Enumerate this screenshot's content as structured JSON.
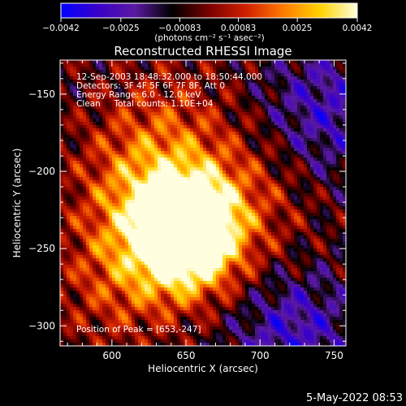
{
  "chart_data": {
    "type": "heatmap",
    "title": "Reconstructed RHESSI Image",
    "xlabel": "Heliocentric X (arcsec)",
    "ylabel": "Heliocentric Y (arcsec)",
    "xlim": [
      565,
      758
    ],
    "ylim": [
      -313,
      -128
    ],
    "xticks": [
      600,
      650,
      700,
      750
    ],
    "xtick_labels": [
      "600",
      "650",
      "700",
      "750"
    ],
    "yticks": [
      -150,
      -200,
      -250,
      -300
    ],
    "ytick_labels": [
      "−150",
      "−200",
      "−250",
      "−300"
    ],
    "colorbar": {
      "min": -0.0042,
      "max": 0.0042,
      "ticks": [
        -0.0042,
        -0.0025,
        -0.00083,
        0.00083,
        0.0025,
        0.0042
      ],
      "tick_labels": [
        "−0.0042",
        "−0.0025",
        "−0.00083",
        "0.00083",
        "0.0025",
        "0.0042"
      ],
      "units": "(photons cm⁻² s⁻¹ asec⁻²)",
      "colors": [
        "#0000ff",
        "#3a00c8",
        "#5a1aa0",
        "#000000",
        "#7a0000",
        "#d02000",
        "#ff7a00",
        "#ffd200",
        "#ffffe0"
      ]
    },
    "info_lines": [
      "12-Sep-2003 18:48:32.000 to 18:50:44.000",
      "Detectors: 3F 4F 5F 6F 7F 8F, Att 0",
      "Energy Range: 6.0 - 12.0 keV",
      "Clean     Total counts: 1.10E+04"
    ],
    "peak_label": "Position of Peak = [653,-247]",
    "peak": [
      653,
      -247
    ],
    "sources": [
      {
        "x": 652,
        "y": -230,
        "value": 0.0042
      },
      {
        "x": 652,
        "y": -247,
        "value": 0.004
      },
      {
        "x": 628,
        "y": -245,
        "value": 0.0022
      },
      {
        "x": 618,
        "y": -205,
        "value": 0.0018
      },
      {
        "x": 688,
        "y": -215,
        "value": 0.0014
      },
      {
        "x": 640,
        "y": -170,
        "value": 0.0012
      },
      {
        "x": 600,
        "y": -275,
        "value": 0.0012
      },
      {
        "x": 705,
        "y": -275,
        "value": 0.0008
      },
      {
        "x": 720,
        "y": -300,
        "value": -0.0026
      },
      {
        "x": 745,
        "y": -160,
        "value": -0.002
      }
    ]
  },
  "footer": {
    "timestamp": "5-May-2022 08:53"
  }
}
